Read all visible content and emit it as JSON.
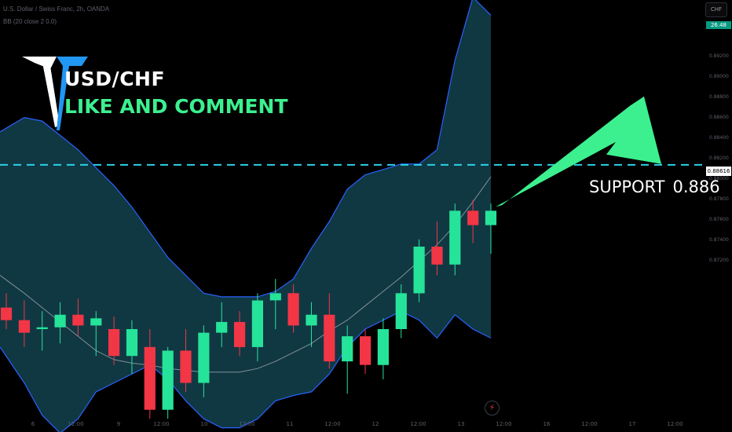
{
  "header": {
    "symbol_line": "U.S. Dollar / Swiss Franc, 2h, OANDA",
    "indicator_line": "BB (20 close 2 0.0)"
  },
  "overlay": {
    "title": "USD/CHF",
    "subtitle": "LIKE AND COMMENT",
    "support_label": "SUPPORT",
    "support_value": "0.886"
  },
  "price_scale": {
    "currency_button": "CHF",
    "current_price_badge": "26.48",
    "level_badge": "0.88616",
    "tick_labels": [
      "0.89200",
      "0.89000",
      "0.88800",
      "0.88600",
      "0.88400",
      "0.88200",
      "0.88000",
      "0.87800",
      "0.87600",
      "0.87400",
      "0.87200"
    ]
  },
  "time_axis": {
    "labels": [
      "6",
      "12:00",
      "9",
      "12:00",
      "10",
      "12:00",
      "11",
      "12:00",
      "12",
      "12:00",
      "13",
      "12:00",
      "16",
      "12:00",
      "17",
      "12:00"
    ]
  },
  "colors": {
    "bull": "#26e39a",
    "bear": "#f23645",
    "band_fill": "#123e4a",
    "band_line": "#2962ff",
    "basis_line": "#b2b5be",
    "support_line": "#2bd1e6",
    "arrow": "#3cf08f"
  },
  "icons": {
    "logo": "tt-logo-icon",
    "bolt": "lightning-icon"
  },
  "chart_data": {
    "type": "candlestick",
    "symbol": "USD/CHF",
    "timeframe": "2h",
    "support_level": 0.88616,
    "ylim": [
      0.8717,
      0.895
    ],
    "bollinger": {
      "upper": [
        0.888,
        0.8888,
        0.8886,
        0.8878,
        0.887,
        0.886,
        0.885,
        0.8838,
        0.8824,
        0.881,
        0.88,
        0.879,
        0.8788,
        0.8788,
        0.8788,
        0.8791,
        0.8798,
        0.8815,
        0.883,
        0.8848,
        0.8856,
        0.8859,
        0.8862,
        0.8862,
        0.887,
        0.892,
        0.8955,
        0.8945
      ],
      "basis": [
        0.88,
        0.879,
        0.8782,
        0.8774,
        0.8766,
        0.8758,
        0.8753,
        0.8751,
        0.875,
        0.8748,
        0.8747,
        0.8746,
        0.8746,
        0.8746,
        0.8748,
        0.8752,
        0.8757,
        0.8762,
        0.8769,
        0.8775,
        0.8783,
        0.8791,
        0.8799,
        0.8808,
        0.8817,
        0.8828,
        0.8841,
        0.8855
      ],
      "lower": [
        0.876,
        0.874,
        0.8722,
        0.8712,
        0.872,
        0.8735,
        0.874,
        0.8745,
        0.875,
        0.8742,
        0.873,
        0.872,
        0.8715,
        0.8715,
        0.872,
        0.873,
        0.8733,
        0.8735,
        0.8745,
        0.876,
        0.877,
        0.8775,
        0.878,
        0.8775,
        0.8765,
        0.8778,
        0.877,
        0.8765
      ]
    },
    "candles": [
      {
        "o": 0.8782,
        "h": 0.879,
        "l": 0.877,
        "c": 0.8775
      },
      {
        "o": 0.8775,
        "h": 0.8786,
        "l": 0.876,
        "c": 0.8768
      },
      {
        "o": 0.877,
        "h": 0.878,
        "l": 0.8758,
        "c": 0.8771
      },
      {
        "o": 0.8771,
        "h": 0.8785,
        "l": 0.8762,
        "c": 0.8778
      },
      {
        "o": 0.8778,
        "h": 0.8787,
        "l": 0.8766,
        "c": 0.8772
      },
      {
        "o": 0.8772,
        "h": 0.878,
        "l": 0.8755,
        "c": 0.8776
      },
      {
        "o": 0.877,
        "h": 0.8777,
        "l": 0.875,
        "c": 0.8755
      },
      {
        "o": 0.8755,
        "h": 0.8775,
        "l": 0.8745,
        "c": 0.877
      },
      {
        "o": 0.876,
        "h": 0.877,
        "l": 0.872,
        "c": 0.8725
      },
      {
        "o": 0.8725,
        "h": 0.876,
        "l": 0.872,
        "c": 0.8758
      },
      {
        "o": 0.8758,
        "h": 0.877,
        "l": 0.8735,
        "c": 0.874
      },
      {
        "o": 0.874,
        "h": 0.8772,
        "l": 0.8732,
        "c": 0.8768
      },
      {
        "o": 0.8768,
        "h": 0.8785,
        "l": 0.876,
        "c": 0.8774
      },
      {
        "o": 0.8774,
        "h": 0.878,
        "l": 0.8755,
        "c": 0.876
      },
      {
        "o": 0.876,
        "h": 0.879,
        "l": 0.8752,
        "c": 0.8786
      },
      {
        "o": 0.8786,
        "h": 0.8798,
        "l": 0.877,
        "c": 0.879
      },
      {
        "o": 0.879,
        "h": 0.8795,
        "l": 0.8768,
        "c": 0.8772
      },
      {
        "o": 0.8772,
        "h": 0.8785,
        "l": 0.876,
        "c": 0.8778
      },
      {
        "o": 0.8778,
        "h": 0.879,
        "l": 0.8748,
        "c": 0.8752
      },
      {
        "o": 0.8752,
        "h": 0.8772,
        "l": 0.8734,
        "c": 0.8766
      },
      {
        "o": 0.8766,
        "h": 0.877,
        "l": 0.8745,
        "c": 0.875
      },
      {
        "o": 0.875,
        "h": 0.8776,
        "l": 0.8742,
        "c": 0.877
      },
      {
        "o": 0.877,
        "h": 0.8795,
        "l": 0.8765,
        "c": 0.879
      },
      {
        "o": 0.879,
        "h": 0.882,
        "l": 0.8785,
        "c": 0.8816
      },
      {
        "o": 0.8816,
        "h": 0.883,
        "l": 0.88,
        "c": 0.8806
      },
      {
        "o": 0.8806,
        "h": 0.884,
        "l": 0.88,
        "c": 0.8836
      },
      {
        "o": 0.8836,
        "h": 0.8842,
        "l": 0.8818,
        "c": 0.8828
      },
      {
        "o": 0.8828,
        "h": 0.884,
        "l": 0.8812,
        "c": 0.8836
      }
    ]
  }
}
